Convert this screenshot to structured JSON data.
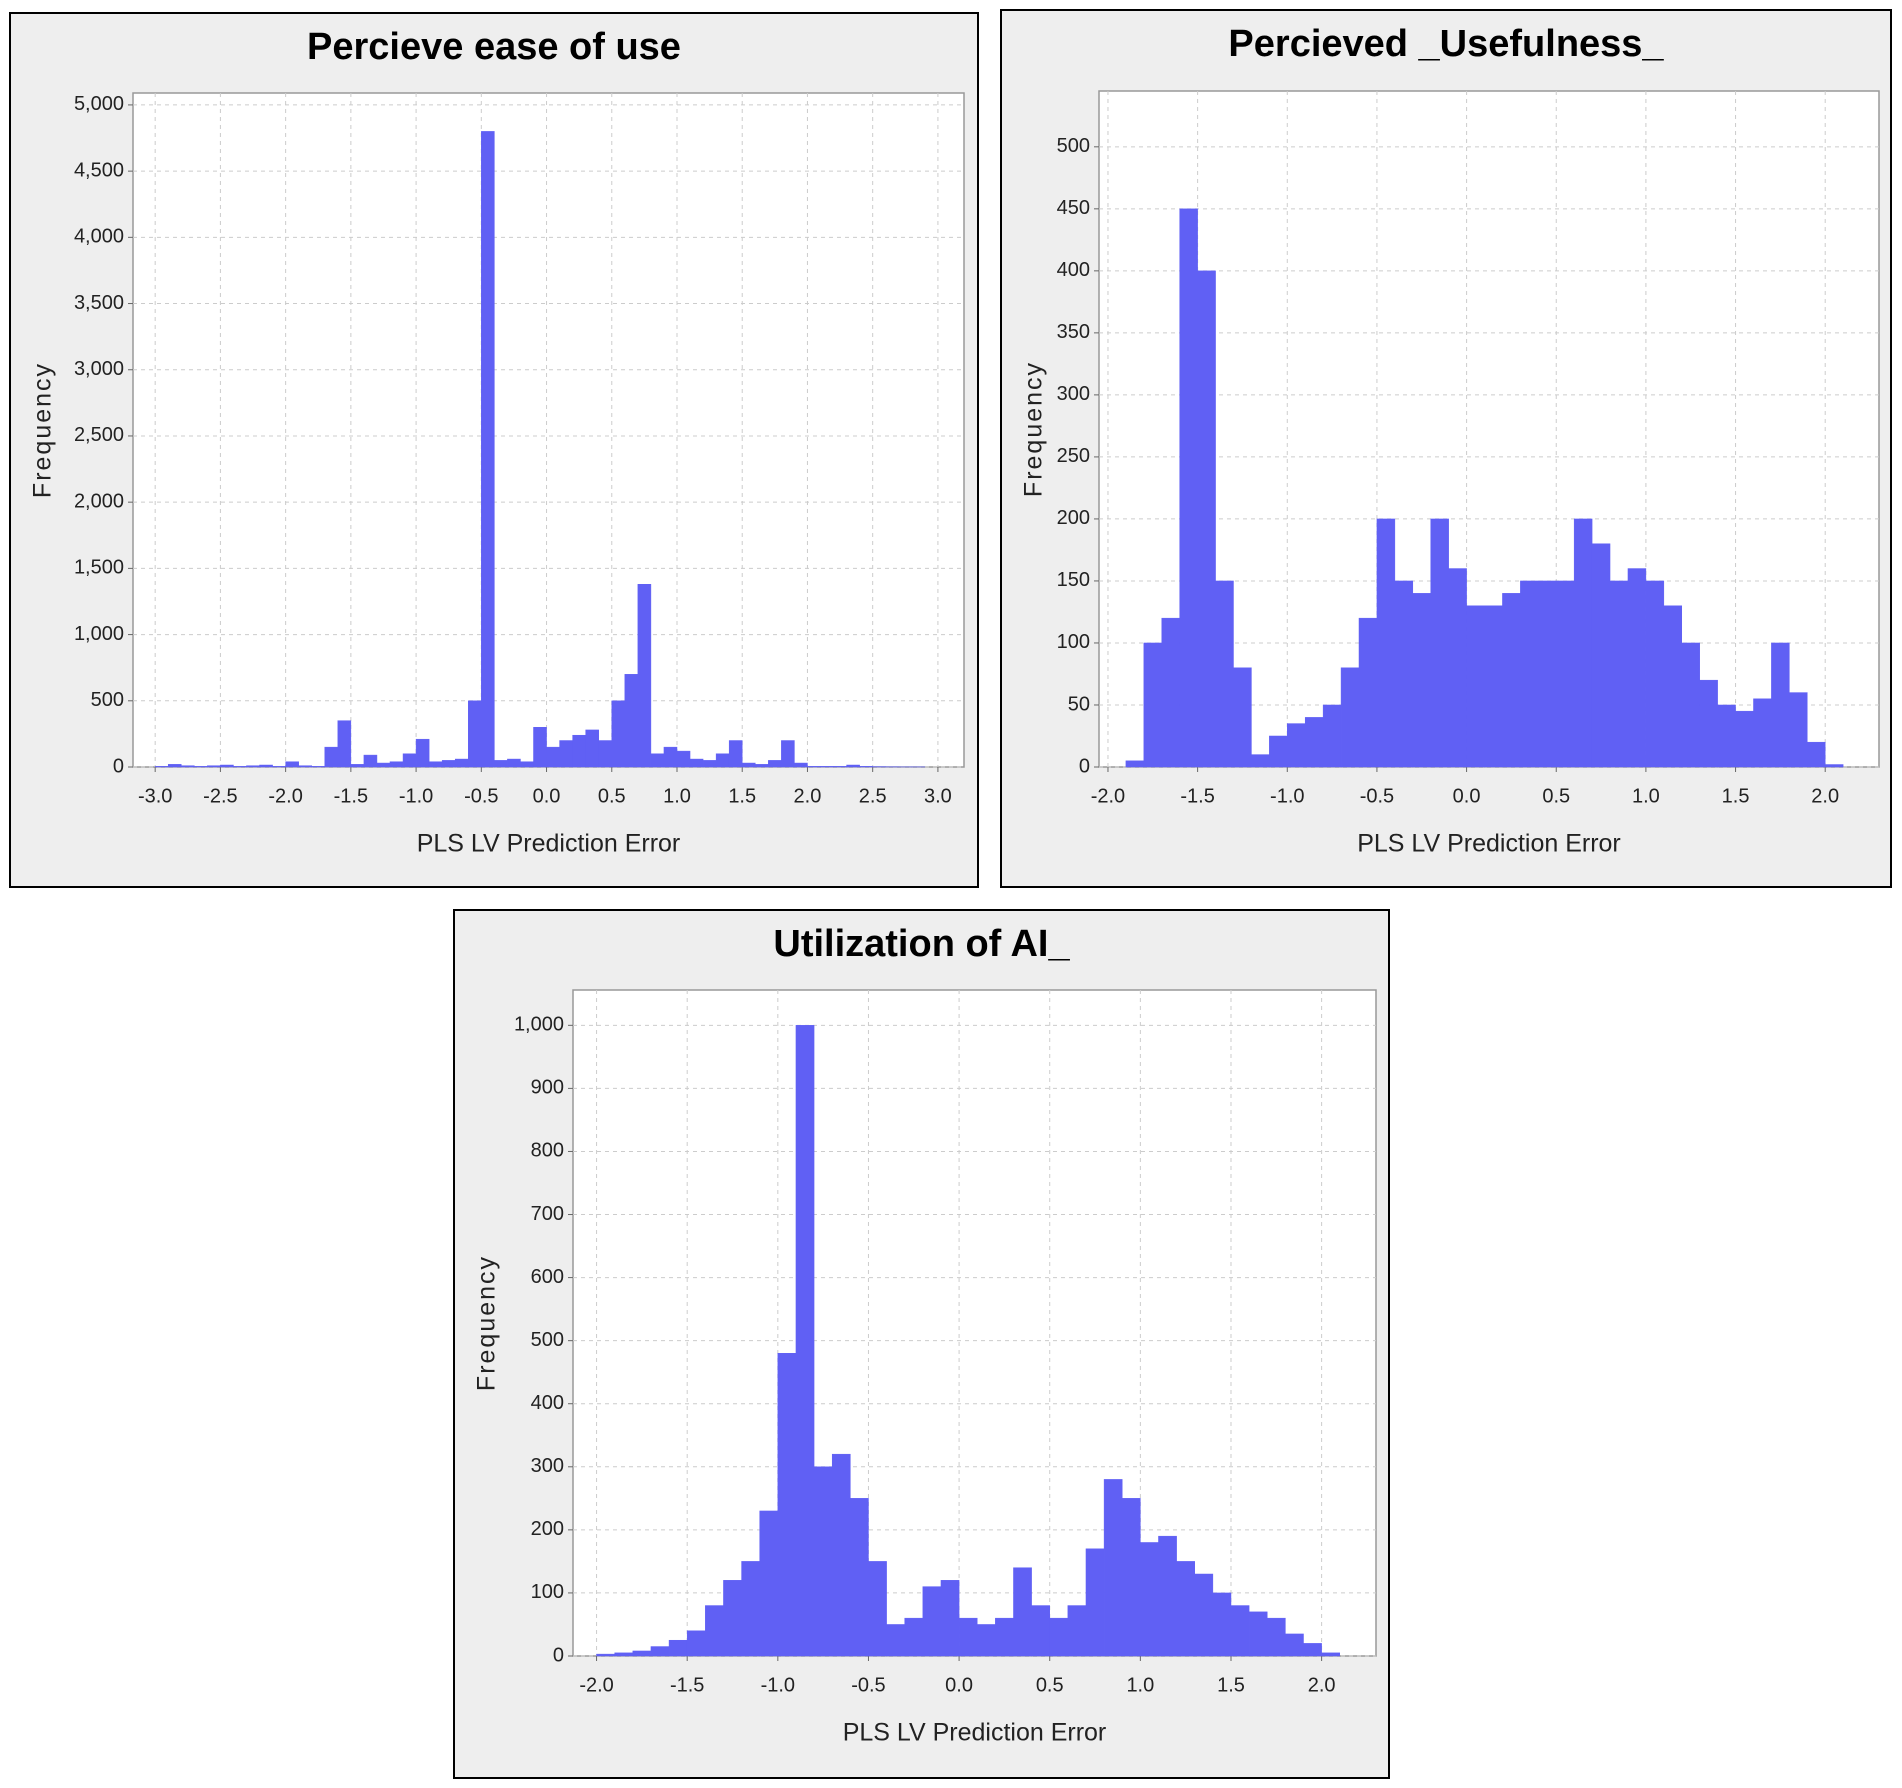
{
  "chart_data": [
    {
      "type": "histogram",
      "title": "Percieve ease of use",
      "x_label": "PLS LV Prediction Error",
      "y_label": "Frequency",
      "bins": [
        -3,
        -2.9,
        -2.8,
        -2.7,
        -2.6,
        -2.5,
        -2.4,
        -2.3,
        -2.2,
        -2.1,
        -2,
        -1.9,
        -1.8,
        -1.7,
        -1.6,
        -1.5,
        -1.4,
        -1.3,
        -1.2,
        -1.1,
        -1,
        -0.9,
        -0.8,
        -0.7,
        -0.6,
        -0.5,
        -0.4,
        -0.3,
        -0.2,
        -0.1,
        0,
        0.1,
        0.2,
        0.3,
        0.4,
        0.5,
        0.6,
        0.7,
        0.8,
        0.9,
        1,
        1.1,
        1.2,
        1.3,
        1.4,
        1.5,
        1.6,
        1.7,
        1.8,
        1.9,
        2,
        2.1,
        2.2,
        2.3,
        2.4,
        2.5,
        2.6,
        2.7,
        2.8,
        2.9,
        3
      ],
      "counts": [
        5,
        20,
        10,
        5,
        10,
        15,
        5,
        10,
        15,
        5,
        40,
        10,
        5,
        150,
        350,
        20,
        90,
        30,
        40,
        100,
        210,
        40,
        50,
        60,
        500,
        4800,
        50,
        60,
        40,
        300,
        150,
        200,
        240,
        280,
        200,
        500,
        700,
        1380,
        100,
        150,
        120,
        60,
        50,
        100,
        200,
        30,
        20,
        50,
        200,
        30,
        5,
        5,
        5,
        15,
        5,
        3,
        2,
        1,
        1,
        0
      ],
      "color": "#6060f4",
      "grid": true,
      "xlim": [
        -3.17,
        3.2
      ],
      "xticks": [
        {
          "value": -3,
          "label": "-3.0"
        },
        -2.5,
        {
          "value": -2,
          "label": "-2.0"
        },
        -1.5,
        {
          "value": -1,
          "label": "-1.0"
        },
        -0.5,
        {
          "value": 0,
          "label": "0.0"
        },
        0.5,
        {
          "value": 1,
          "label": "1.0"
        },
        1.5,
        {
          "value": 2,
          "label": "2.0"
        },
        2.5,
        {
          "value": 3,
          "label": "3.0"
        }
      ],
      "ylim": [
        0,
        5090
      ],
      "yticks": [
        0,
        500,
        {
          "value": 1000,
          "label": "1,000"
        },
        {
          "value": 1500,
          "label": "1,500"
        },
        {
          "value": 2000,
          "label": "2,000"
        },
        {
          "value": 2500,
          "label": "2,500"
        },
        {
          "value": 3000,
          "label": "3,000"
        },
        {
          "value": 3500,
          "label": "3,500"
        },
        {
          "value": 4000,
          "label": "4,000"
        },
        {
          "value": 4500,
          "label": "4,500"
        },
        {
          "value": 5000,
          "label": "5,000"
        }
      ]
    },
    {
      "type": "histogram",
      "title": "Percieved _Usefulness_",
      "x_label": "PLS LV Prediction Error",
      "y_label": "Frequency",
      "bins": [
        -2,
        -1.9,
        -1.8,
        -1.7,
        -1.6,
        -1.5,
        -1.4,
        -1.3,
        -1.2,
        -1.1,
        -1,
        -0.9,
        -0.8,
        -0.7,
        -0.6,
        -0.5,
        -0.4,
        -0.3,
        -0.2,
        -0.1,
        0,
        0.1,
        0.2,
        0.3,
        0.4,
        0.5,
        0.6,
        0.7,
        0.8,
        0.9,
        1,
        1.1,
        1.2,
        1.3,
        1.4,
        1.5,
        1.6,
        1.7,
        1.8,
        1.9,
        2,
        2.1
      ],
      "counts": [
        0,
        5,
        100,
        120,
        450,
        400,
        150,
        80,
        10,
        25,
        35,
        40,
        50,
        80,
        120,
        200,
        150,
        140,
        200,
        160,
        130,
        130,
        140,
        150,
        150,
        150,
        200,
        180,
        150,
        160,
        150,
        130,
        100,
        70,
        50,
        45,
        55,
        100,
        60,
        20,
        2
      ],
      "color": "#6060f4",
      "grid": true,
      "xlim": [
        -2.05,
        2.3
      ],
      "xticks": [
        {
          "value": -2,
          "label": "-2.0"
        },
        -1.5,
        {
          "value": -1,
          "label": "-1.0"
        },
        -0.5,
        {
          "value": 0,
          "label": "0.0"
        },
        0.5,
        {
          "value": 1,
          "label": "1.0"
        },
        1.5,
        {
          "value": 2,
          "label": "2.0"
        }
      ],
      "ylim": [
        0,
        545
      ],
      "yticks": [
        0,
        50,
        100,
        150,
        200,
        250,
        300,
        350,
        400,
        450,
        500
      ]
    },
    {
      "type": "histogram",
      "title": "Utilization of AI_",
      "x_label": "PLS LV Prediction Error",
      "y_label": "Frequency",
      "bins": [
        -2,
        -1.9,
        -1.8,
        -1.7,
        -1.6,
        -1.5,
        -1.4,
        -1.3,
        -1.2,
        -1.1,
        -1,
        -0.9,
        -0.8,
        -0.7,
        -0.6,
        -0.5,
        -0.4,
        -0.3,
        -0.2,
        -0.1,
        0,
        0.1,
        0.2,
        0.3,
        0.4,
        0.5,
        0.6,
        0.7,
        0.8,
        0.9,
        1,
        1.1,
        1.2,
        1.3,
        1.4,
        1.5,
        1.6,
        1.7,
        1.8,
        1.9,
        2,
        2.1
      ],
      "counts": [
        3,
        5,
        8,
        15,
        25,
        40,
        80,
        120,
        150,
        230,
        480,
        1000,
        300,
        320,
        250,
        150,
        50,
        60,
        110,
        120,
        60,
        50,
        60,
        140,
        80,
        60,
        80,
        170,
        280,
        250,
        180,
        190,
        150,
        130,
        100,
        80,
        70,
        60,
        35,
        20,
        5
      ],
      "color": "#6060f4",
      "grid": true,
      "xlim": [
        -2.13,
        2.3
      ],
      "xticks": [
        {
          "value": -2,
          "label": "-2.0"
        },
        -1.5,
        {
          "value": -1,
          "label": "-1.0"
        },
        -0.5,
        {
          "value": 0,
          "label": "0.0"
        },
        0.5,
        {
          "value": 1,
          "label": "1.0"
        },
        1.5,
        {
          "value": 2,
          "label": "2.0"
        }
      ],
      "ylim": [
        0,
        1056
      ],
      "yticks": [
        0,
        100,
        200,
        300,
        400,
        500,
        600,
        700,
        800,
        900,
        {
          "value": 1000,
          "label": "1,000"
        }
      ]
    }
  ]
}
